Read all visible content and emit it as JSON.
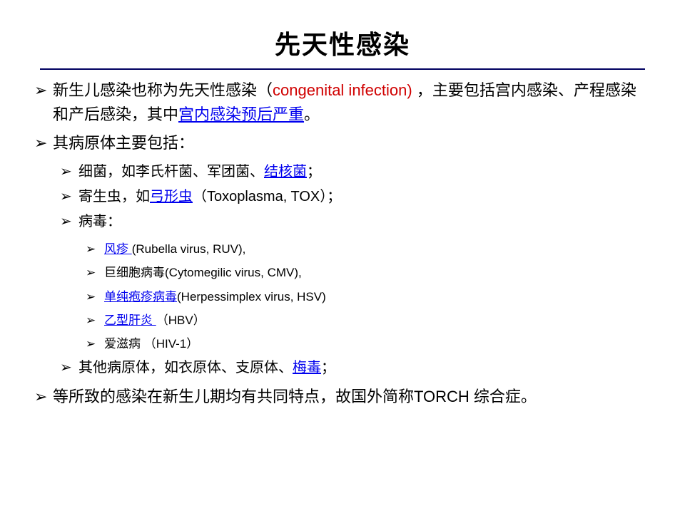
{
  "title": {
    "text": "先天性感染",
    "fontsize": 36
  },
  "colors": {
    "link": "#0000ee",
    "red": "#d00000",
    "underline": "#000060",
    "text": "#000000",
    "bg": "#ffffff"
  },
  "font": {
    "level1": 22,
    "level2": 20,
    "level3": 17,
    "bullet_char": "➢"
  },
  "b1": {
    "pre": "新生儿感染也称为先天性感染（",
    "en": "congenital infection) ",
    "post1": "，主要包括宫内感染、产程感染和产后感染，其中",
    "link": "宫内感染预后严重",
    "post2": "。"
  },
  "b2": {
    "text": "其病原体主要包括："
  },
  "s1": {
    "pre": "细菌，如李氏杆菌、军团菌、",
    "link": "结核菌",
    "post": "；"
  },
  "s2": {
    "pre": "寄生虫，如",
    "link": "弓形虫",
    "post": "（Toxoplasma, TOX）；"
  },
  "s3": {
    "text": "病毒："
  },
  "v1": {
    "link": "风疹 ",
    "rest": "(Rubella virus, RUV),"
  },
  "v2": {
    "text": "巨细胞病毒(Cytomegilic virus, CMV),"
  },
  "v3": {
    "link": "单纯疱疹病毒",
    "rest": "(Herpessimplex virus, HSV)"
  },
  "v4": {
    "link": "乙型肝炎 ",
    "rest": "（HBV）"
  },
  "v5": {
    "text": "爱滋病 （HIV-1）"
  },
  "s4": {
    "pre": "其他病原体，如衣原体、支原体、",
    "link": "梅毒",
    "post": "；"
  },
  "b3": {
    "text": "等所致的感染在新生儿期均有共同特点，故国外简称TORCH 综合症。"
  }
}
